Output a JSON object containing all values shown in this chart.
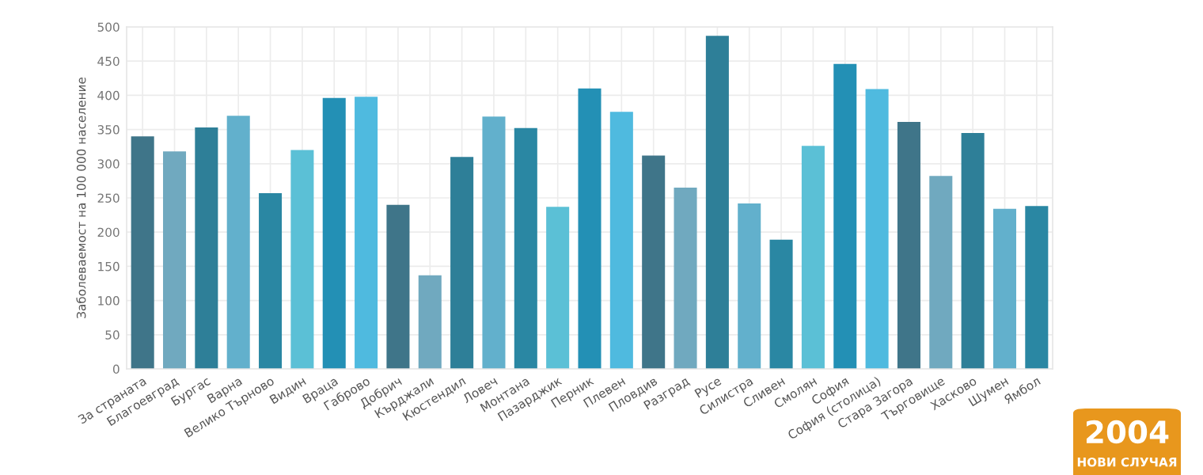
{
  "chart_data": {
    "type": "bar",
    "ylabel": "Заболеваемост на 100 000 население",
    "categories": [
      "За страната",
      "Благоевград",
      "Бургас",
      "Варна",
      "Велико Търново",
      "Видин",
      "Враца",
      "Габрово",
      "Добрич",
      "Кърджали",
      "Кюстендил",
      "Ловеч",
      "Монтана",
      "Пазарджик",
      "Перник",
      "Плевен",
      "Пловдив",
      "Разград",
      "Русе",
      "Силистра",
      "Сливен",
      "Смолян",
      "София",
      "София (столица)",
      "Стара Загора",
      "Търговище",
      "Хасково",
      "Шумен",
      "Ямбол"
    ],
    "values": [
      340,
      318,
      353,
      370,
      257,
      320,
      396,
      398,
      240,
      137,
      310,
      369,
      352,
      237,
      410,
      376,
      312,
      265,
      487,
      242,
      189,
      326,
      446,
      409,
      361,
      282,
      345,
      234,
      238
    ],
    "colors": [
      "#3f7589",
      "#70a9bf",
      "#2e7f98",
      "#62b0cc",
      "#2a87a3",
      "#5bc0d6",
      "#2390b5",
      "#4fbadf",
      "#3f7589",
      "#70a9bf",
      "#2e7f98",
      "#62b0cc",
      "#2a87a3",
      "#5bc0d6",
      "#2390b5",
      "#4fbadf",
      "#3f7589",
      "#70a9bf",
      "#2e7f98",
      "#62b0cc",
      "#2a87a3",
      "#5bc0d6",
      "#2390b5",
      "#4fbadf",
      "#3f7589",
      "#70a9bf",
      "#2e7f98",
      "#62b0cc",
      "#2a87a3"
    ],
    "ylim": [
      0,
      500
    ],
    "yticks": [
      0,
      50,
      100,
      150,
      200,
      250,
      300,
      350,
      400,
      450,
      500
    ],
    "grid": true,
    "annotations": [
      "2004",
      "НОВИ СЛУЧАЯ"
    ]
  }
}
